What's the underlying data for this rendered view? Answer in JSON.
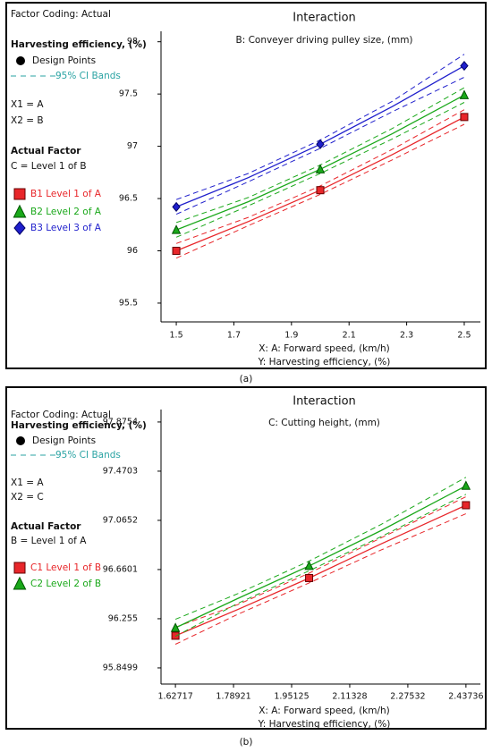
{
  "chart_data": [
    {
      "type": "line",
      "title": "Interaction",
      "subtitle": "B: Conveyer driving pulley size,  (mm)",
      "xlabel": "X: A: Forward speed,  (km/h)",
      "ylabel": "Y: Harvesting efficiency,  (%)",
      "factor_coding": "Factor Coding: Actual",
      "response": "Harvesting efficiency,  (%)",
      "design_points_label": "Design Points",
      "ci_label": "95% CI Bands",
      "ci_color": "#2aa3a3",
      "x1": "X1 = A",
      "x2": "X2 = B",
      "actual_factor": "Actual Factor",
      "factor_setting": "C = Level 1 of B",
      "caption": "(a)",
      "x": [
        1.5,
        1.75,
        2.0,
        2.25,
        2.5
      ],
      "xlim": [
        1.447,
        2.556
      ],
      "xticks": [
        1.5,
        1.7,
        1.9,
        2.1,
        2.3,
        2.5
      ],
      "ylim": [
        95.32,
        98.1
      ],
      "yticks": [
        95.5,
        96,
        96.5,
        97,
        97.5,
        98
      ],
      "series": [
        {
          "name": "B1 Level 1 of A",
          "color": "#e8262a",
          "marker": "square",
          "values": [
            96.0,
            96.28,
            96.58,
            96.92,
            97.28
          ],
          "ci_upper": [
            96.07,
            96.32,
            96.62,
            96.97,
            97.35
          ],
          "ci_lower": [
            95.93,
            96.24,
            96.54,
            96.87,
            97.21
          ],
          "points": [
            96.0,
            null,
            96.58,
            null,
            97.28
          ]
        },
        {
          "name": "B2 Level 2 of A",
          "color": "#1aa81a",
          "marker": "triangle",
          "values": [
            96.2,
            96.47,
            96.78,
            97.12,
            97.49
          ],
          "ci_upper": [
            96.27,
            96.51,
            96.82,
            97.17,
            97.56
          ],
          "ci_lower": [
            96.13,
            96.43,
            96.74,
            97.07,
            97.42
          ],
          "points": [
            96.2,
            null,
            96.78,
            null,
            97.49
          ]
        },
        {
          "name": "B3 Level 3 of A",
          "color": "#1f1fcc",
          "marker": "diamond",
          "values": [
            96.42,
            96.7,
            97.02,
            97.38,
            97.77
          ],
          "ci_upper": [
            96.49,
            96.74,
            97.06,
            97.43,
            97.88
          ],
          "ci_lower": [
            96.35,
            96.66,
            96.98,
            97.33,
            97.66
          ],
          "points": [
            96.42,
            null,
            97.02,
            null,
            97.77
          ]
        }
      ]
    },
    {
      "type": "line",
      "title": "Interaction",
      "subtitle": "C: Cutting height,  (mm)",
      "xlabel": "X: A: Forward speed,  (km/h)",
      "ylabel": "Y: Harvesting efficiency,  (%)",
      "factor_coding": "Factor Coding: Actual",
      "response": "Harvesting efficiency,  (%)",
      "design_points_label": "Design Points",
      "ci_label": "95% CI Bands",
      "ci_color": "#2aa3a3",
      "x1": "X1 = A",
      "x2": "X2 = C",
      "actual_factor": "Actual Factor",
      "factor_setting": "B = Level 1 of A",
      "caption": "(b)",
      "x": [
        1.62717,
        1.8,
        2.0,
        2.2,
        2.43736
      ],
      "xlim": [
        1.587,
        2.4776
      ],
      "xticks": [
        1.62717,
        1.78921,
        1.95125,
        2.11328,
        2.27532,
        2.43736
      ],
      "ylim": [
        95.717,
        97.978
      ],
      "yticks": [
        95.8499,
        96.255,
        96.6601,
        97.0652,
        97.4703,
        97.8754
      ],
      "series": [
        {
          "name": "C1 Level 1 of B",
          "color": "#e8262a",
          "marker": "square",
          "values": [
            96.115,
            96.33,
            96.59,
            96.87,
            97.19
          ],
          "ci_upper": [
            96.185,
            96.37,
            96.63,
            96.92,
            97.26
          ],
          "ci_lower": [
            96.045,
            96.29,
            96.55,
            96.82,
            97.12
          ],
          "points": [
            96.115,
            null,
            96.59,
            null,
            97.19
          ]
        },
        {
          "name": "C2 Level 2 of B",
          "color": "#1aa81a",
          "marker": "triangle",
          "values": [
            96.18,
            96.42,
            96.69,
            96.98,
            97.35
          ],
          "ci_upper": [
            96.25,
            96.46,
            96.73,
            97.03,
            97.42
          ],
          "ci_lower": [
            96.11,
            96.38,
            96.65,
            96.93,
            97.28
          ],
          "points": [
            96.18,
            null,
            96.69,
            null,
            97.35
          ]
        }
      ]
    }
  ]
}
